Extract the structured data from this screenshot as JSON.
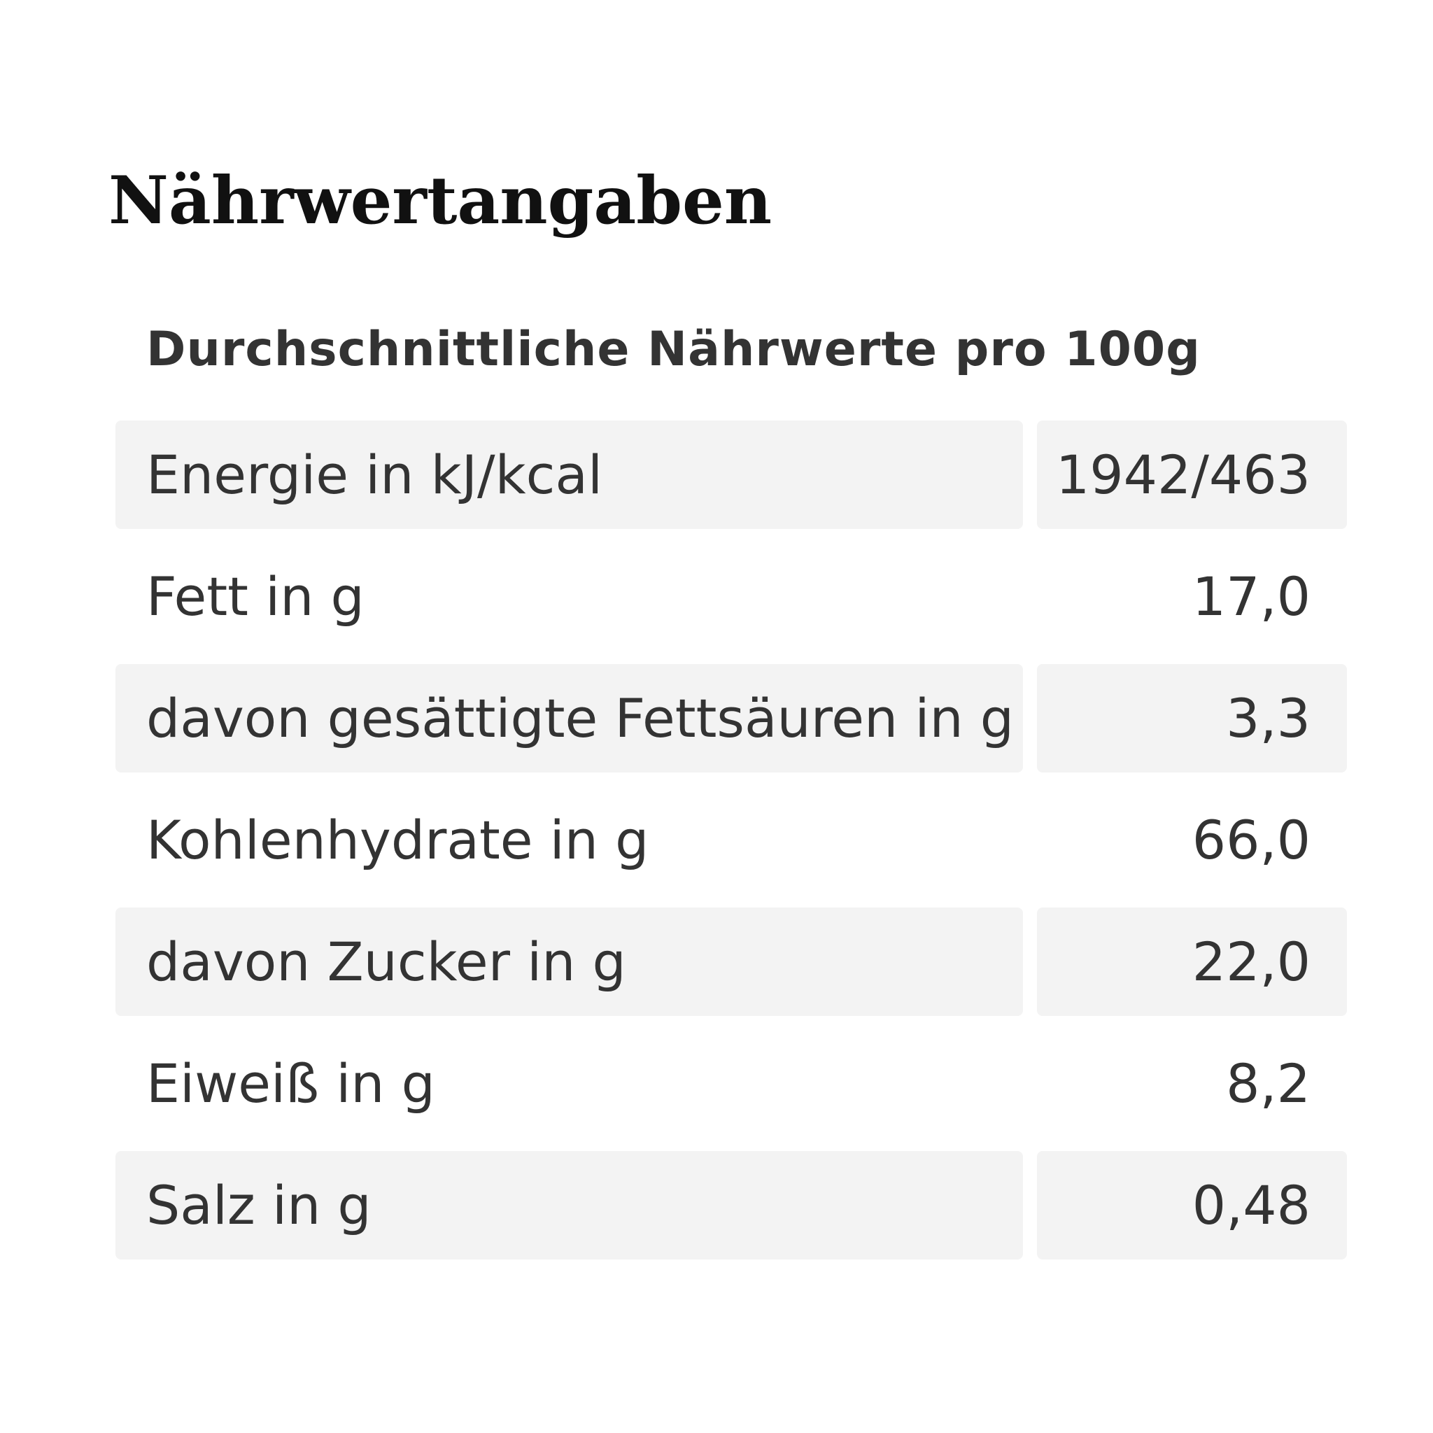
{
  "header": {
    "title": "Nährwertangaben",
    "subtitle": "Durchschnittliche Nährwerte pro 100g"
  },
  "table": {
    "rows": [
      [
        "Energie in kJ/kcal",
        "1942/463"
      ],
      [
        "Fett in g",
        "17,0"
      ],
      [
        "davon gesättigte Fettsäuren in g",
        "3,3"
      ],
      [
        "Kohlenhydrate in g",
        "66,0"
      ],
      [
        "davon Zucker in g",
        "22,0"
      ],
      [
        "Eiweiß in g",
        "8,2"
      ],
      [
        "Salz in g",
        "0,48"
      ]
    ]
  }
}
